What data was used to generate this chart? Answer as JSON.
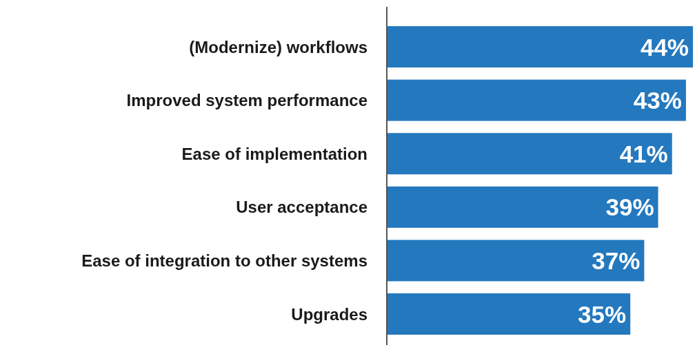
{
  "chart_data": {
    "type": "bar",
    "orientation": "horizontal",
    "categories": [
      "(Modernize) workflows",
      "Improved system performance",
      "Ease of implementation",
      "User acceptance",
      "Ease of integration to other systems",
      "Upgrades"
    ],
    "values": [
      44,
      43,
      41,
      39,
      37,
      35
    ],
    "value_labels": [
      "44%",
      "43%",
      "41%",
      "39%",
      "37%",
      "35%"
    ],
    "color": "#2478be"
  }
}
